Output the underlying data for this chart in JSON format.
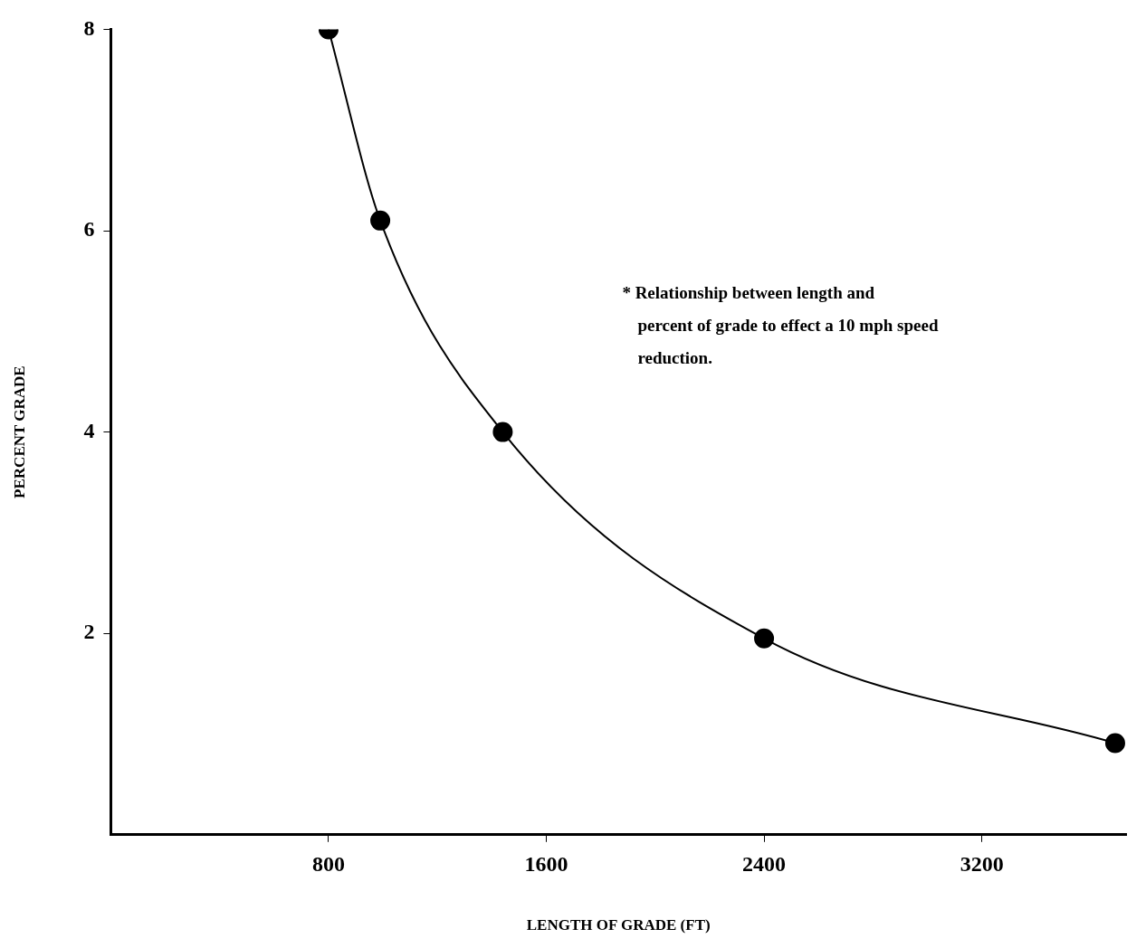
{
  "chart_data": {
    "type": "line",
    "xlabel": "LENGTH OF GRADE (FT)",
    "ylabel": "PERCENT GRADE",
    "annotations": [
      "* Relationship between length and percent of grade to effect a 10 mph speed reduction."
    ],
    "x": [
      800,
      990,
      1440,
      2400,
      3690
    ],
    "values": [
      8,
      6.1,
      4,
      1.95,
      0.91
    ],
    "color": "#000000",
    "marker": "circle",
    "line_style": "solid",
    "grid": false,
    "legend": false,
    "xlim": [
      0,
      3730
    ],
    "xticks": [
      800,
      1600,
      2400,
      3200
    ],
    "ylim": [
      0,
      8
    ],
    "yticks": [
      2,
      4,
      6,
      8
    ]
  }
}
